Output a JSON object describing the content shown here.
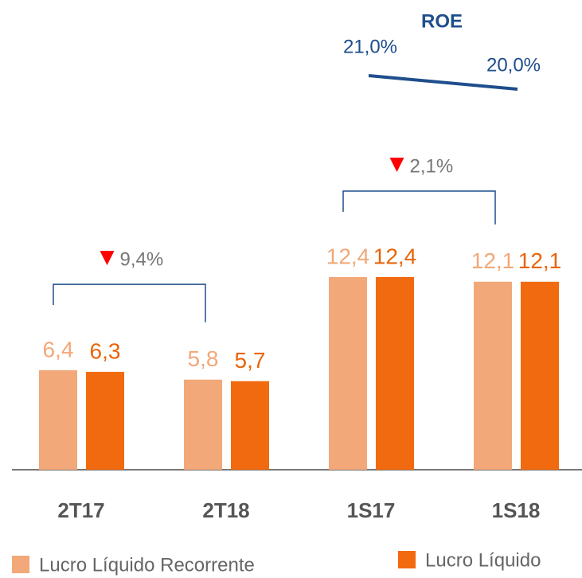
{
  "chart_data": {
    "type": "bar",
    "categories": [
      "2T17",
      "2T18",
      "1S17",
      "1S18"
    ],
    "series": [
      {
        "name": "Lucro Líquido Recorrente",
        "color": "#f2a878",
        "label_color": "#f2a878",
        "values": [
          6.4,
          5.8,
          12.4,
          12.1
        ],
        "value_labels": [
          "6,4",
          "5,8",
          "12,4",
          "12,1"
        ]
      },
      {
        "name": "Lucro Líquido",
        "color": "#f26a0f",
        "label_color": "#e8650a",
        "values": [
          6.3,
          5.7,
          12.4,
          12.1
        ],
        "value_labels": [
          "6,3",
          "5,7",
          "12,4",
          "12,1"
        ]
      }
    ],
    "roe": {
      "title": "ROE",
      "values": [
        21.0,
        20.0
      ],
      "value_labels": [
        "21,0%",
        "20,0%"
      ],
      "color": "#1f4e8c"
    },
    "changes": {
      "values": [
        9.4,
        2.1
      ],
      "value_labels": [
        "9,4%",
        "2,1%"
      ],
      "color": "#ff0000"
    }
  }
}
